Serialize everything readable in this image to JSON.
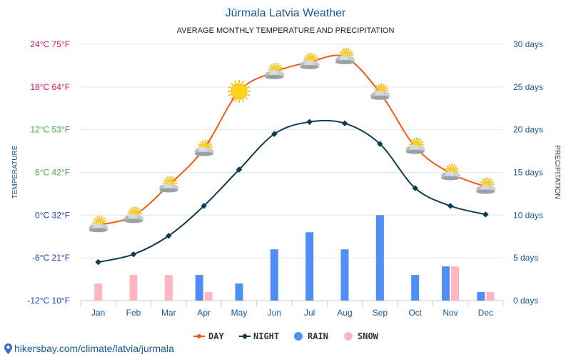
{
  "chart_data": {
    "type": "line+bar",
    "title": "Jūrmala Latvia Weather",
    "subtitle": "AVERAGE MONTHLY TEMPERATURE AND PRECIPITATION",
    "ylabel_left": "TEMPERATURE",
    "ylabel_right": "PRECIPITATION",
    "categories": [
      "Jan",
      "Feb",
      "Mar",
      "Apr",
      "May",
      "Jun",
      "Jul",
      "Aug",
      "Sep",
      "Oct",
      "Nov",
      "Dec"
    ],
    "left_axis": {
      "unit": "°C",
      "range": [
        -12,
        24
      ],
      "ticks": [
        {
          "v": 24,
          "label": "24°C 75°F",
          "color": "#e0115f"
        },
        {
          "v": 18,
          "label": "18°C 64°F",
          "color": "#e0115f"
        },
        {
          "v": 12,
          "label": "12°C 53°F",
          "color": "#3cb043"
        },
        {
          "v": 6,
          "label": "6°C 42°F",
          "color": "#3cb043"
        },
        {
          "v": 0,
          "label": "0°C 32°F",
          "color": "#1f3fbf"
        },
        {
          "v": -6,
          "label": "-6°C 21°F",
          "color": "#1f3fbf"
        },
        {
          "v": -12,
          "label": "-12°C 10°F",
          "color": "#1f3fbf"
        }
      ]
    },
    "right_axis": {
      "unit": "days",
      "range": [
        0,
        30
      ],
      "ticks": [
        {
          "v": 30,
          "label": "30 days"
        },
        {
          "v": 25,
          "label": "25 days"
        },
        {
          "v": 20,
          "label": "20 days"
        },
        {
          "v": 15,
          "label": "15 days"
        },
        {
          "v": 10,
          "label": "10 days"
        },
        {
          "v": 5,
          "label": "5 days"
        },
        {
          "v": 0,
          "label": "0 days"
        }
      ]
    },
    "series": [
      {
        "name": "DAY",
        "kind": "line",
        "color": "#f05a14",
        "values": [
          -1.4,
          -0.1,
          4.2,
          9.3,
          17.4,
          20.1,
          21.5,
          22.2,
          17.2,
          9.6,
          5.9,
          4.0
        ]
      },
      {
        "name": "NIGHT",
        "kind": "line",
        "color": "#0c3c50",
        "values": [
          -6.6,
          -5.5,
          -2.9,
          1.3,
          6.4,
          11.4,
          13.1,
          12.9,
          10.0,
          3.8,
          1.3,
          0.1
        ]
      },
      {
        "name": "RAIN",
        "kind": "bar",
        "color": "#4f8ef7",
        "values": [
          0,
          0,
          0,
          3,
          2,
          6,
          8,
          6,
          10,
          3,
          4,
          1
        ]
      },
      {
        "name": "SNOW",
        "kind": "bar",
        "color": "#ffb6c1",
        "values": [
          2,
          3,
          3,
          1,
          0,
          0,
          0,
          0,
          0,
          0,
          4,
          1
        ]
      }
    ],
    "weather_icons": [
      "cloud-sun",
      "cloud-sun",
      "cloud-sun",
      "cloud-sun",
      "sun",
      "cloud-sun",
      "cloud-sun",
      "cloud-sun",
      "cloud-sun",
      "cloud-sun",
      "cloud-sun",
      "cloud-sun"
    ],
    "legend": [
      "DAY",
      "NIGHT",
      "RAIN",
      "SNOW"
    ]
  },
  "footer": {
    "site": "hikersbay.com/climate/latvia/jurmala",
    "icon": "location-pin-icon"
  },
  "colors": {
    "title": "#1a5a96",
    "right_axis": "#1a5a96",
    "grid": "#e6e6e6",
    "month_label": "#1a5a96"
  }
}
